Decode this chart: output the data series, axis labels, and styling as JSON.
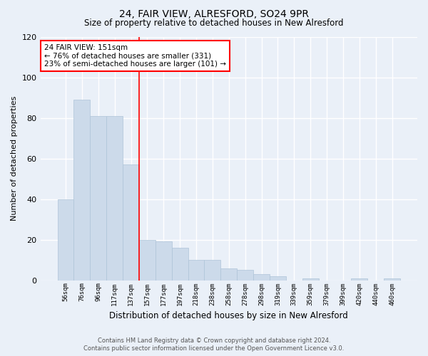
{
  "title": "24, FAIR VIEW, ALRESFORD, SO24 9PR",
  "subtitle": "Size of property relative to detached houses in New Alresford",
  "xlabel": "Distribution of detached houses by size in New Alresford",
  "ylabel": "Number of detached properties",
  "footer_line1": "Contains HM Land Registry data © Crown copyright and database right 2024.",
  "footer_line2": "Contains public sector information licensed under the Open Government Licence v3.0.",
  "bar_labels": [
    "56sqm",
    "76sqm",
    "96sqm",
    "117sqm",
    "137sqm",
    "157sqm",
    "177sqm",
    "197sqm",
    "218sqm",
    "238sqm",
    "258sqm",
    "278sqm",
    "298sqm",
    "319sqm",
    "339sqm",
    "359sqm",
    "379sqm",
    "399sqm",
    "420sqm",
    "440sqm",
    "460sqm"
  ],
  "bar_values": [
    40,
    89,
    81,
    81,
    57,
    20,
    19,
    16,
    10,
    10,
    6,
    5,
    3,
    2,
    0,
    1,
    0,
    0,
    1,
    0,
    1
  ],
  "bar_color": "#ccdaea",
  "bar_edge_color": "#aec4d8",
  "bg_color": "#eaf0f8",
  "plot_bg_color": "#eaf0f8",
  "grid_color": "#ffffff",
  "vline_x_index": 4.5,
  "vline_color": "red",
  "annotation_text": "24 FAIR VIEW: 151sqm\n← 76% of detached houses are smaller (331)\n23% of semi-detached houses are larger (101) →",
  "annotation_box_color": "white",
  "annotation_box_edge": "red",
  "ylim": [
    0,
    120
  ],
  "yticks": [
    0,
    20,
    40,
    60,
    80,
    100,
    120
  ]
}
